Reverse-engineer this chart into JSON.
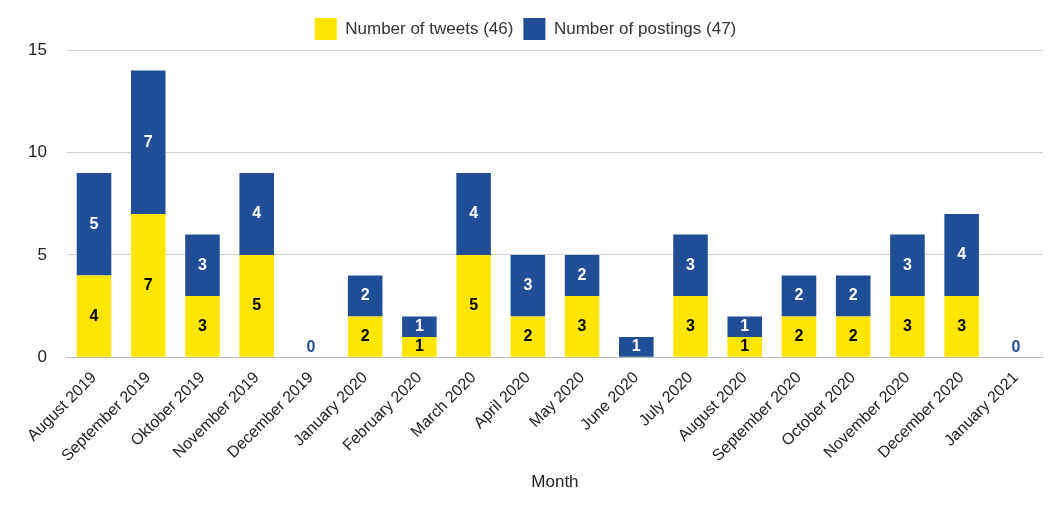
{
  "chart_data": {
    "type": "bar",
    "stacked": true,
    "xlabel": "Month",
    "categories": [
      "August 2019",
      "September 2019",
      "Oktober 2019",
      "November 2019",
      "December 2019",
      "January 2020",
      "February 2020",
      "March 2020",
      "April 2020",
      "May 2020",
      "June 2020",
      "July 2020",
      "August 2020",
      "September 2020",
      "October 2020",
      "November 2020",
      "December 2020",
      "January 2021"
    ],
    "series": [
      {
        "name": "Number of tweets (46)",
        "color": "#ffe600",
        "values": [
          4,
          7,
          3,
          5,
          0,
          2,
          1,
          5,
          2,
          3,
          0,
          3,
          1,
          2,
          2,
          3,
          3,
          0
        ],
        "value_labels": [
          "4",
          "7",
          "3",
          "5",
          "0",
          "2",
          "1",
          "5",
          "2",
          "3",
          null,
          "3",
          "1",
          "2",
          "2",
          "3",
          "3",
          "0"
        ]
      },
      {
        "name": "Number of postings (47)",
        "color": "#1f4e96",
        "values": [
          5,
          7,
          3,
          4,
          0,
          2,
          1,
          4,
          3,
          2,
          1,
          3,
          1,
          2,
          2,
          3,
          4,
          0
        ],
        "value_labels": [
          "5",
          "7",
          "3",
          "4",
          null,
          "2",
          "1",
          "4",
          "3",
          "2",
          "1",
          "3",
          "1",
          "2",
          "2",
          "3",
          "4",
          null
        ]
      }
    ],
    "ylim": [
      0,
      15
    ],
    "yticks": [
      0,
      5,
      10,
      15
    ],
    "grid": "y",
    "legend": "top"
  }
}
